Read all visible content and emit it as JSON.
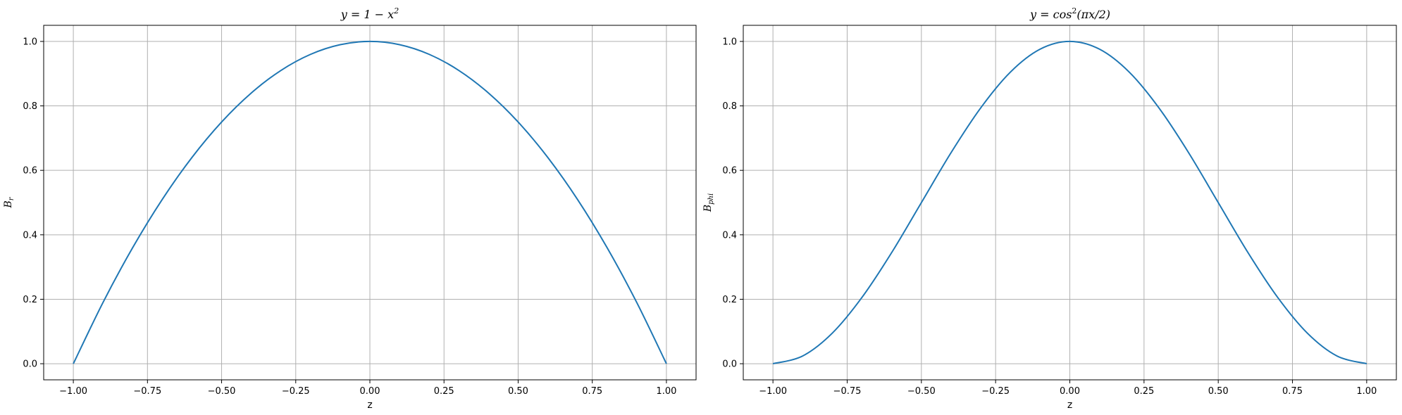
{
  "chart_data": [
    {
      "type": "line",
      "title": "y = 1 − x",
      "title_sup": "2",
      "xlabel": "z",
      "ylabel": "B",
      "ylabel_sub": "r",
      "xlim": [
        -1.1,
        1.1
      ],
      "ylim": [
        -0.05,
        1.05
      ],
      "xticks": [
        -1.0,
        -0.75,
        -0.5,
        -0.25,
        0.0,
        0.25,
        0.5,
        0.75,
        1.0
      ],
      "xtick_labels": [
        "−1.00",
        "−0.75",
        "−0.50",
        "−0.25",
        "0.00",
        "0.25",
        "0.50",
        "0.75",
        "1.00"
      ],
      "yticks": [
        0.0,
        0.2,
        0.4,
        0.6,
        0.8,
        1.0
      ],
      "ytick_labels": [
        "0.0",
        "0.2",
        "0.4",
        "0.6",
        "0.8",
        "1.0"
      ],
      "grid": true,
      "color": "#1f77b4",
      "series": [
        {
          "x": [
            -1.0,
            -0.9,
            -0.8,
            -0.7,
            -0.6,
            -0.5,
            -0.4,
            -0.3,
            -0.2,
            -0.1,
            0.0,
            0.1,
            0.2,
            0.3,
            0.4,
            0.5,
            0.6,
            0.7,
            0.8,
            0.9,
            1.0
          ],
          "y": [
            0.0,
            0.19,
            0.36,
            0.51,
            0.64,
            0.75,
            0.84,
            0.91,
            0.96,
            0.99,
            1.0,
            0.99,
            0.96,
            0.91,
            0.84,
            0.75,
            0.64,
            0.51,
            0.36,
            0.19,
            0.0
          ]
        }
      ]
    },
    {
      "type": "line",
      "title_prefix": "y = cos",
      "title_sup": "2",
      "title_suffix": "(πx/2)",
      "xlabel": "z",
      "ylabel": "B",
      "ylabel_sub": "phi",
      "xlim": [
        -1.1,
        1.1
      ],
      "ylim": [
        -0.05,
        1.05
      ],
      "xticks": [
        -1.0,
        -0.75,
        -0.5,
        -0.25,
        0.0,
        0.25,
        0.5,
        0.75,
        1.0
      ],
      "xtick_labels": [
        "−1.00",
        "−0.75",
        "−0.50",
        "−0.25",
        "0.00",
        "0.25",
        "0.50",
        "0.75",
        "1.00"
      ],
      "yticks": [
        0.0,
        0.2,
        0.4,
        0.6,
        0.8,
        1.0
      ],
      "ytick_labels": [
        "0.0",
        "0.2",
        "0.4",
        "0.6",
        "0.8",
        "1.0"
      ],
      "grid": true,
      "color": "#1f77b4",
      "series": [
        {
          "x": [
            -1.0,
            -0.9,
            -0.8,
            -0.7,
            -0.6,
            -0.5,
            -0.4,
            -0.3,
            -0.2,
            -0.1,
            0.0,
            0.1,
            0.2,
            0.3,
            0.4,
            0.5,
            0.6,
            0.7,
            0.8,
            0.9,
            1.0
          ],
          "y": [
            0.0,
            0.024,
            0.095,
            0.206,
            0.345,
            0.5,
            0.655,
            0.794,
            0.905,
            0.976,
            1.0,
            0.976,
            0.905,
            0.794,
            0.655,
            0.5,
            0.345,
            0.206,
            0.095,
            0.024,
            0.0
          ]
        }
      ]
    }
  ]
}
